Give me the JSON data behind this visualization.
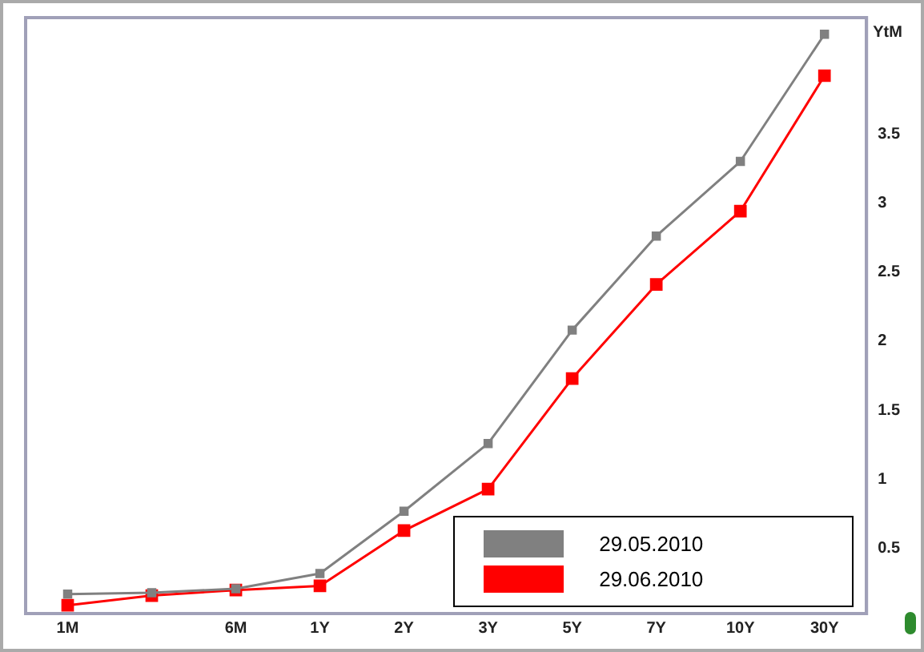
{
  "chart_data": {
    "type": "line",
    "ylabel": "YtM",
    "categories": [
      "1M",
      null,
      "6M",
      "1Y",
      "2Y",
      "3Y",
      "5Y",
      "7Y",
      "10Y",
      "30Y"
    ],
    "series": [
      {
        "name": "29.05.2010",
        "color": "#808080",
        "values": [
          0.17,
          0.18,
          0.21,
          0.32,
          0.77,
          1.26,
          2.08,
          2.76,
          3.3,
          4.22
        ]
      },
      {
        "name": "29.06.2010",
        "color": "#ff0000",
        "values": [
          0.09,
          0.16,
          0.2,
          0.23,
          0.63,
          0.93,
          1.73,
          2.41,
          2.94,
          3.92
        ]
      }
    ],
    "ylim": [
      0.03,
      4.34
    ],
    "yticks": [
      0.5,
      1,
      1.5,
      2,
      2.5,
      3,
      3.5
    ],
    "grid": false,
    "legend": "bottom right",
    "marker": "square",
    "line_style": "solid"
  }
}
